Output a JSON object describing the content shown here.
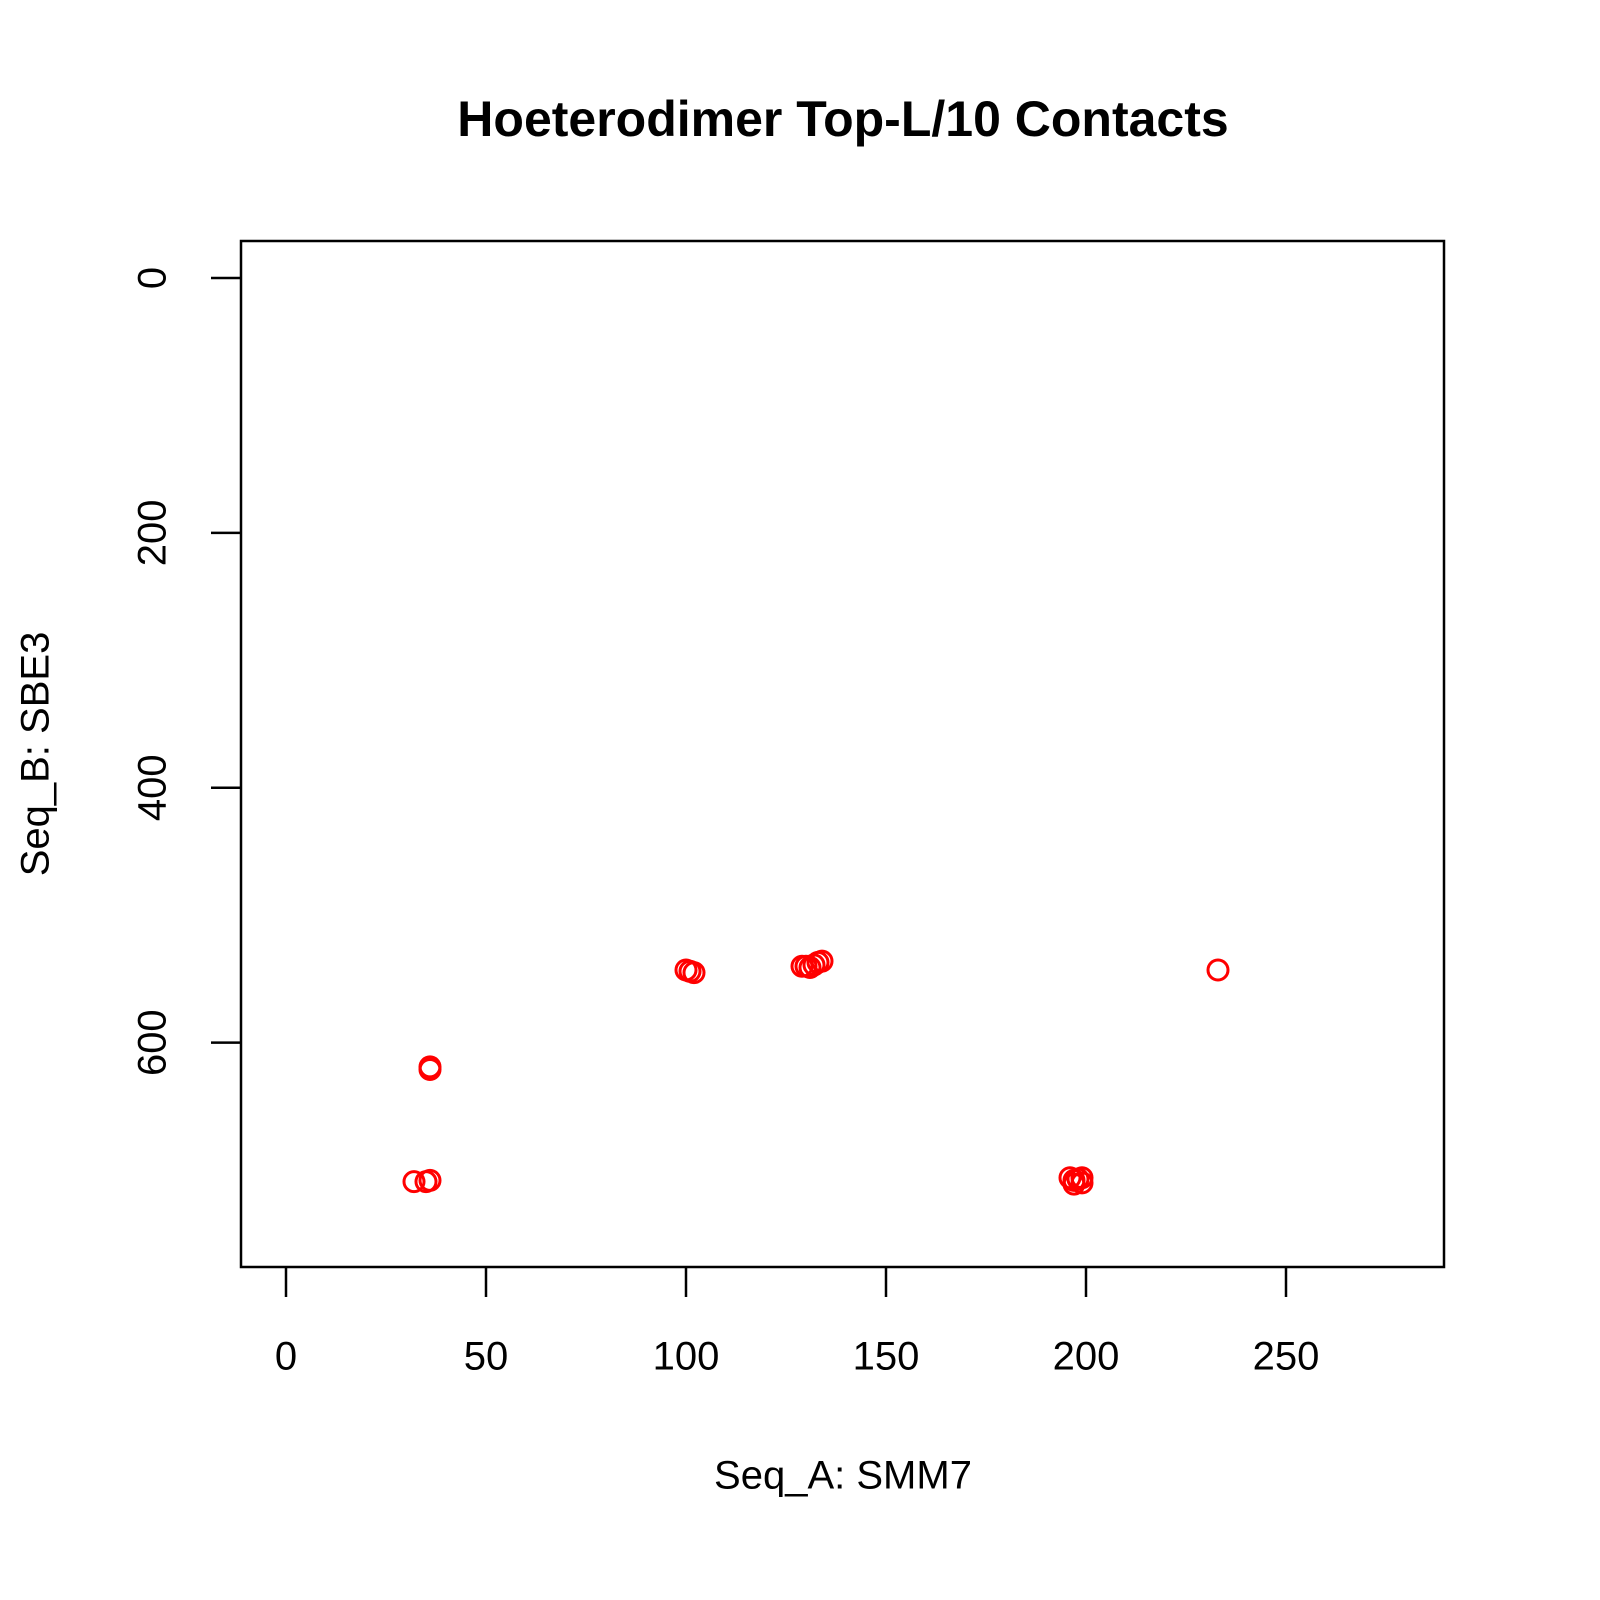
{
  "chart_data": {
    "type": "scatter",
    "title": "Hoeterodimer Top-L/10 Contacts",
    "xlabel": "Seq_A: SMM7",
    "ylabel": "Seq_B: SBE3",
    "color": "#ff0000",
    "x": [
      32,
      35,
      36,
      36,
      36,
      100,
      101,
      102,
      129,
      130,
      131,
      132,
      133,
      134,
      196,
      197,
      198,
      199,
      199,
      197,
      233
    ],
    "values": [
      709,
      709,
      708,
      619,
      621,
      543,
      544,
      545,
      540,
      540,
      541,
      539,
      537,
      536,
      706,
      708,
      707,
      706,
      710,
      711,
      543
    ],
    "xlim": [
      -11.25,
      289.5
    ],
    "xticks": [
      0,
      50,
      100,
      150,
      200,
      250
    ],
    "ylim": [
      776,
      -29
    ],
    "yticks": [
      0,
      200,
      400,
      600
    ]
  }
}
